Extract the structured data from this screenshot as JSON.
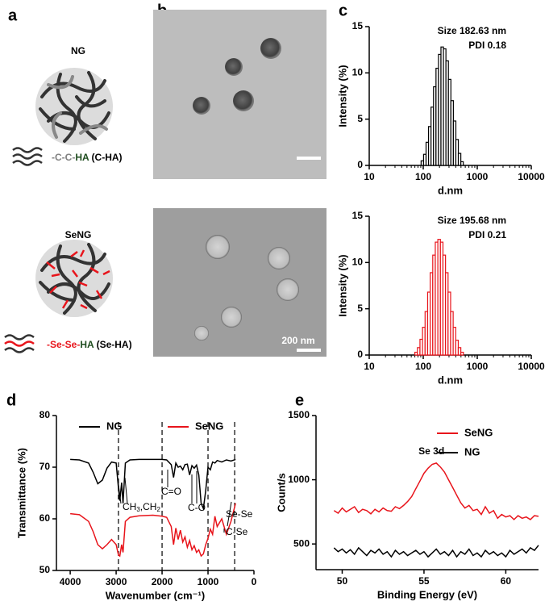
{
  "panels": {
    "a": {
      "label": "a",
      "ng": "NG",
      "c_ha": [
        "-C-C-",
        "HA",
        " (C-HA)"
      ],
      "seng": "SeNG",
      "se_ha": [
        "-Se-Se-",
        "HA",
        " (Se-HA)"
      ]
    },
    "b": {
      "label": "b",
      "scale_bar": "200 nm"
    },
    "c": {
      "label": "c"
    },
    "d": {
      "label": "d"
    },
    "e": {
      "label": "e"
    }
  },
  "chart_data": [
    {
      "type": "histogram",
      "color": "#000000",
      "xscale": "log",
      "bins": [
        91.3,
        101.5,
        112.8,
        125.4,
        139.4,
        155,
        172.3,
        191.5,
        212.9,
        236.7,
        263.1,
        292.5,
        325.1,
        361.4,
        401.8,
        446.6,
        496.5,
        551.9
      ],
      "values": [
        0.5,
        1.2,
        2.5,
        4.2,
        6.3,
        8.5,
        10.5,
        12,
        12.8,
        12.6,
        11.3,
        9.3,
        7,
        4.8,
        2.8,
        1.3,
        0.4
      ],
      "xlim": [
        10,
        10000
      ],
      "xticks": [
        10,
        100,
        1000,
        10000
      ],
      "ylim": [
        0,
        15
      ],
      "yticks": [
        0,
        5,
        10,
        15
      ],
      "xlabel": "d.nm",
      "ylabel": "Intensity (%)",
      "annotations": [
        "Size 182.63 nm",
        "PDI 0.18"
      ]
    },
    {
      "type": "histogram",
      "color": "#e8141b",
      "xscale": "log",
      "bins": [
        70,
        78,
        87,
        97,
        108.2,
        120.6,
        134.5,
        150,
        167.2,
        186.4,
        207.9,
        231.8,
        258.4,
        288.1,
        321.3,
        358.2,
        399.4,
        445.3,
        496.5,
        553.6
      ],
      "values": [
        0.3,
        0.8,
        1.7,
        3,
        4.7,
        6.8,
        8.9,
        10.8,
        12.2,
        12.5,
        12.2,
        10.8,
        8.9,
        6.8,
        4.7,
        3,
        1.6,
        0.8,
        0.3
      ],
      "xlim": [
        10,
        10000
      ],
      "xticks": [
        10,
        100,
        1000,
        10000
      ],
      "ylim": [
        0,
        15
      ],
      "yticks": [
        0,
        5,
        10,
        15
      ],
      "xlabel": "d.nm",
      "ylabel": "Intensity (%)",
      "annotations": [
        "Size 195.68 nm",
        "PDI 0.21"
      ]
    },
    {
      "type": "line",
      "x": [
        4000,
        3800,
        3600,
        3500,
        3400,
        3300,
        3200,
        3100,
        3000,
        2950,
        2920,
        2880,
        2850,
        2800,
        2700,
        2500,
        2200,
        2000,
        1900,
        1800,
        1750,
        1700,
        1650,
        1600,
        1550,
        1500,
        1450,
        1400,
        1350,
        1300,
        1250,
        1200,
        1150,
        1100,
        1050,
        1000,
        950,
        900,
        850,
        800,
        700,
        600,
        500,
        400
      ],
      "series": [
        {
          "name": "NG",
          "color": "#000000",
          "values": [
            71.5,
            71.4,
            70.8,
            69,
            66.8,
            67.5,
            69.8,
            71,
            70.8,
            66,
            63.5,
            67,
            63,
            70.8,
            71.4,
            71.5,
            71.5,
            71.5,
            71.4,
            70.5,
            68,
            70.8,
            70,
            70.2,
            69.5,
            70.5,
            70.6,
            68.5,
            70.3,
            69.8,
            70.4,
            68.5,
            63,
            62,
            65.5,
            70,
            69.5,
            71,
            70.8,
            71.3,
            71,
            71.4,
            71.2,
            71.5
          ]
        },
        {
          "name": "SeNG",
          "color": "#e8141b",
          "values": [
            61,
            60.8,
            59.5,
            57.5,
            55,
            54.2,
            55,
            56,
            55,
            53,
            52.8,
            55,
            53.5,
            59.5,
            60.3,
            60.6,
            60.7,
            60.5,
            60.3,
            58.5,
            55,
            58.2,
            56,
            57.8,
            55.5,
            56.5,
            54.5,
            55.8,
            54,
            54.8,
            53.5,
            54,
            52.8,
            53.2,
            55,
            56.2,
            58,
            57,
            60.5,
            58.5,
            60,
            57,
            59.5,
            63
          ]
        }
      ],
      "xlim": [
        4300,
        0
      ],
      "xticks": [
        4000,
        3000,
        2000,
        1000,
        0
      ],
      "ylim": [
        50,
        80
      ],
      "yticks": [
        50,
        60,
        70,
        80
      ],
      "ref_lines": [
        2950,
        2000,
        1000,
        420
      ],
      "xlabel": "Wavenumber (cm⁻¹)",
      "ylabel": "Transmittance (%)",
      "annotation_groups": [
        "CH",
        "3",
        ",CH",
        "2"
      ],
      "annotations": [
        "C=O",
        "C-O",
        "Se-Se",
        "C-Se"
      ]
    },
    {
      "type": "line",
      "x": [
        49.5,
        49.75,
        50,
        50.25,
        50.5,
        50.75,
        51,
        51.25,
        51.5,
        51.75,
        52,
        52.25,
        52.5,
        52.75,
        53,
        53.25,
        53.5,
        53.75,
        54,
        54.25,
        54.5,
        54.75,
        55,
        55.25,
        55.5,
        55.75,
        56,
        56.25,
        56.5,
        56.75,
        57,
        57.25,
        57.5,
        57.75,
        58,
        58.25,
        58.5,
        58.75,
        59,
        59.25,
        59.5,
        59.75,
        60,
        60.25,
        60.5,
        60.75,
        61,
        61.25,
        61.5,
        61.75,
        62
      ],
      "series": [
        {
          "name": "SeNG",
          "color": "#e8141b",
          "values": [
            760,
            740,
            780,
            750,
            770,
            790,
            745,
            770,
            760,
            735,
            770,
            750,
            780,
            760,
            755,
            790,
            775,
            800,
            830,
            870,
            930,
            990,
            1050,
            1090,
            1120,
            1130,
            1100,
            1060,
            1000,
            940,
            880,
            820,
            780,
            800,
            760,
            770,
            730,
            790,
            740,
            760,
            700,
            730,
            710,
            720,
            690,
            720,
            700,
            710,
            690,
            720,
            715
          ]
        },
        {
          "name": "NG",
          "color": "#000000",
          "values": [
            470,
            440,
            460,
            430,
            455,
            420,
            470,
            440,
            410,
            450,
            430,
            460,
            420,
            440,
            400,
            450,
            420,
            440,
            410,
            430,
            450,
            420,
            440,
            400,
            430,
            460,
            420,
            440,
            410,
            450,
            400,
            440,
            420,
            460,
            410,
            430,
            400,
            450,
            420,
            440,
            410,
            430,
            400,
            450,
            420,
            440,
            460,
            430,
            470,
            450,
            490
          ]
        }
      ],
      "xlim": [
        48.4,
        62
      ],
      "xticks": [
        50,
        55,
        60
      ],
      "ylim": [
        300,
        1500
      ],
      "yticks": [
        500,
        1000,
        1500
      ],
      "xlabel": "Binding Energy (eV)",
      "ylabel": "Count/s",
      "annotations": [
        "Se 3d"
      ]
    }
  ]
}
